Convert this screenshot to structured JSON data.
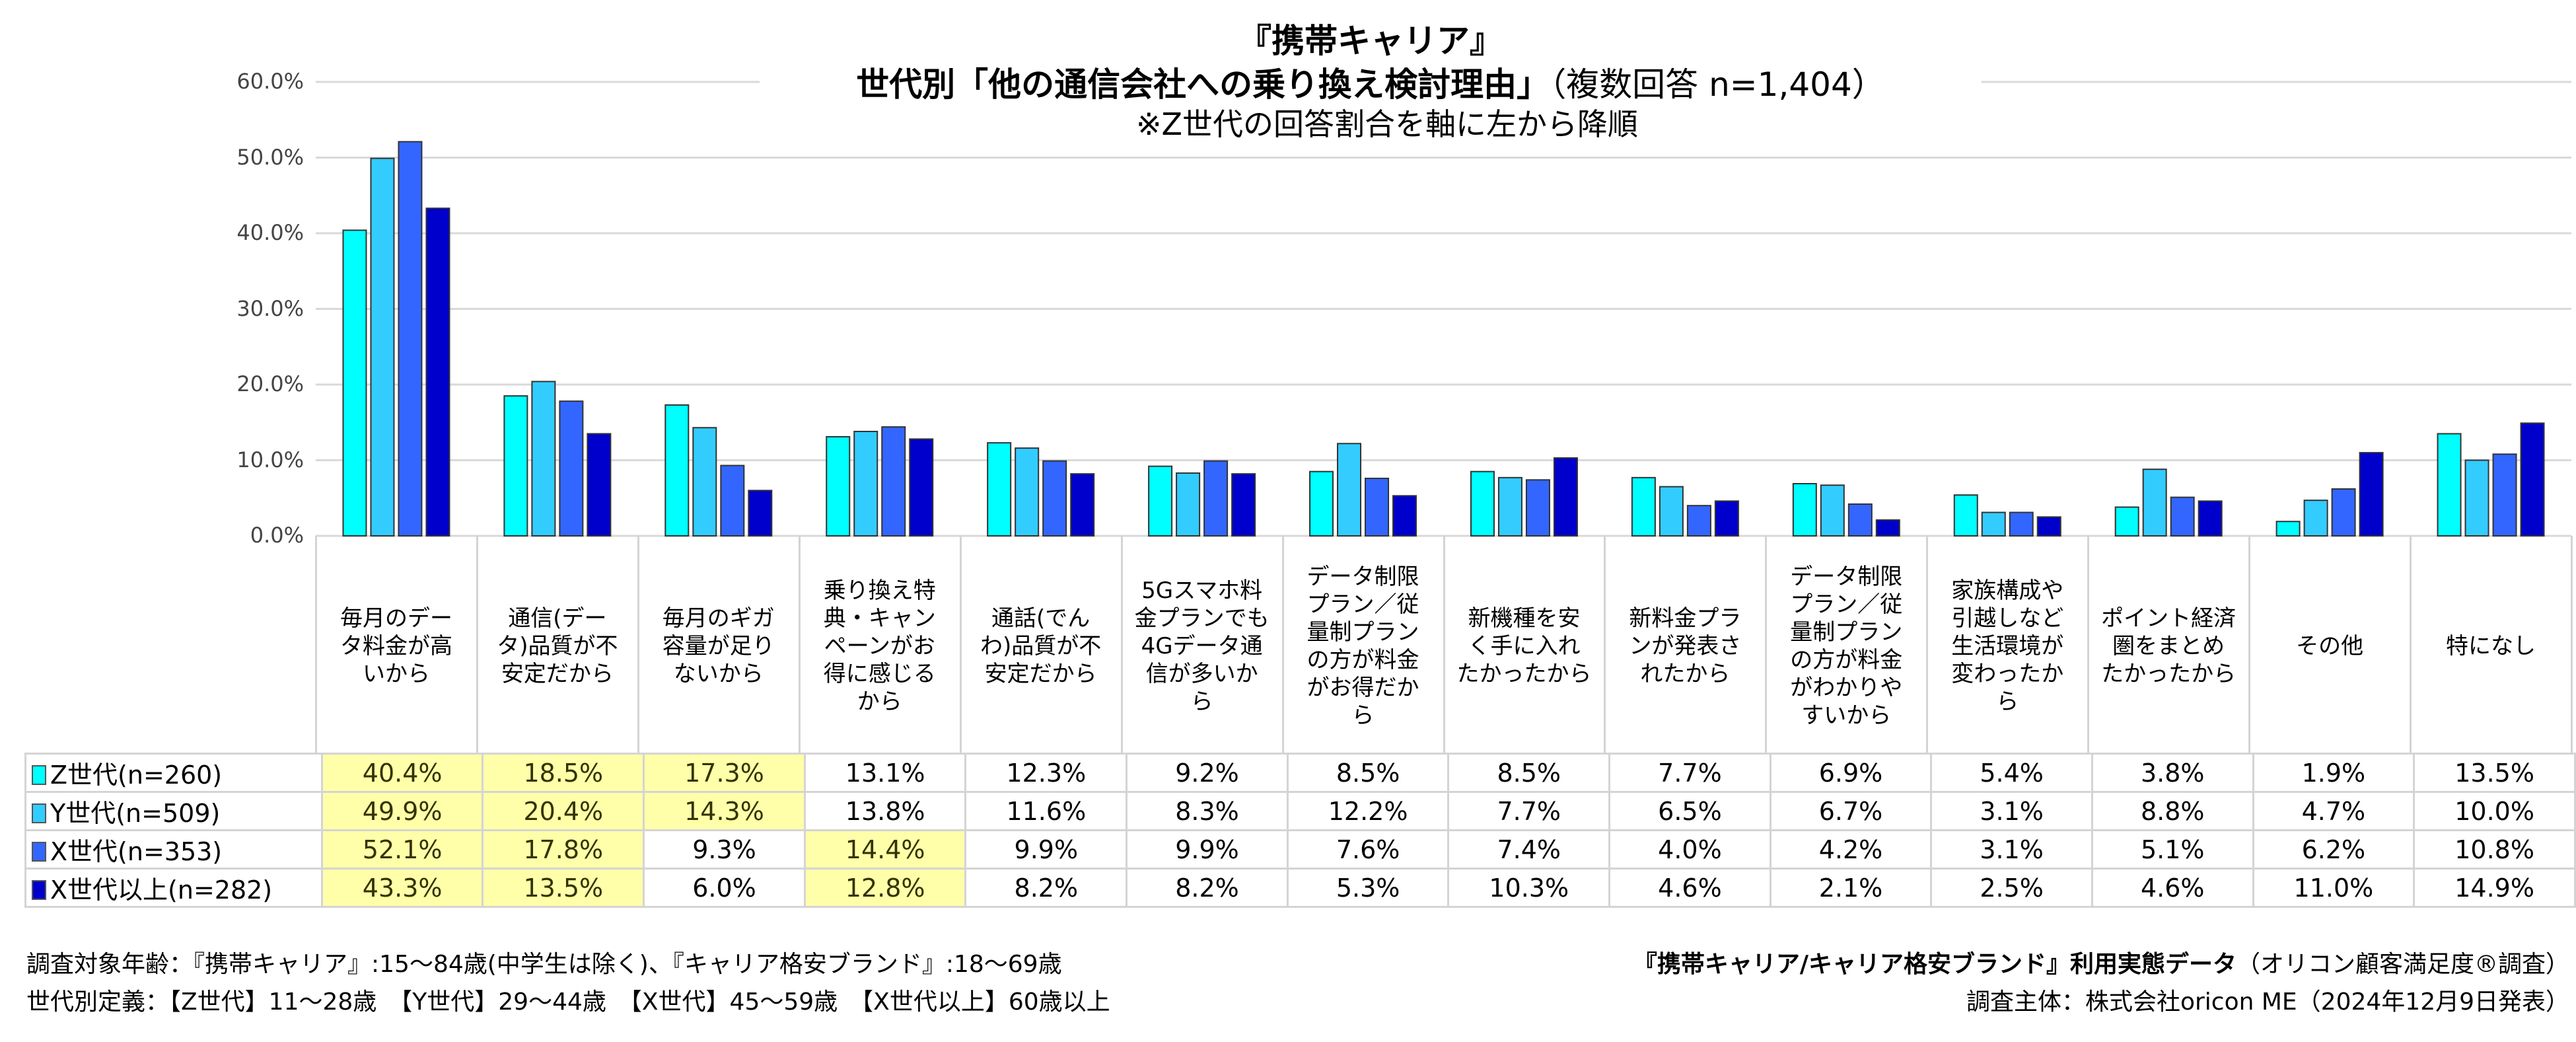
{
  "title": {
    "line1": "『携帯キャリア』",
    "line2": "世代別「他の通信会社への乗り換え検討理由」",
    "line2_sub": "（複数回答 n=1,404）",
    "line3": "※Z世代の回答割合を軸に左から降順"
  },
  "chart_data": {
    "type": "bar",
    "title": "『携帯キャリア』 世代別「他の通信会社への乗り換え検討理由」（複数回答 n=1,404）",
    "subtitle": "※Z世代の回答割合を軸に左から降順",
    "ylim": [
      0,
      60
    ],
    "yticks": [
      "0.0%",
      "10.0%",
      "20.0%",
      "30.0%",
      "40.0%",
      "50.0%",
      "60.0%"
    ],
    "grid": true,
    "legend": "table-bottom",
    "categories": [
      "毎月のデー\nタ料金が高\nいから",
      "通信(デー\nタ)品質が不\n安定だから",
      "毎月のギガ\n容量が足り\nないから",
      "乗り換え特\n典・キャン\nペーンがお\n得に感じる\nから",
      "通話(でん\nわ)品質が不\n安定だから",
      "5Gスマホ料\n金プランでも\n4Gデータ通\n信が多いか\nら",
      "データ制限\nプラン／従\n量制プラン\nの方が料金\nがお得だか\nら",
      "新機種を安\nく手に入れ\nたかったから",
      "新料金プラ\nンが発表さ\nれたから",
      "データ制限\nプラン／従\n量制プラン\nの方が料金\nがわかりや\nすいから",
      "家族構成や\n引越しなど\n生活環境が\n変わったか\nら",
      "ポイント経済\n圏をまとめ\nたかったから",
      "その他",
      "特になし"
    ],
    "series": [
      {
        "name": "Z世代(n=260)",
        "color": "#00ffff",
        "values": [
          40.4,
          18.5,
          17.3,
          13.1,
          12.3,
          9.2,
          8.5,
          8.5,
          7.7,
          6.9,
          5.4,
          3.8,
          1.9,
          13.5
        ],
        "highlight": [
          0,
          1,
          2
        ]
      },
      {
        "name": "Y世代(n=509)",
        "color": "#33ccff",
        "values": [
          49.9,
          20.4,
          14.3,
          13.8,
          11.6,
          8.3,
          12.2,
          7.7,
          6.5,
          6.7,
          3.1,
          8.8,
          4.7,
          10.0
        ],
        "highlight": [
          0,
          1,
          2
        ]
      },
      {
        "name": "X世代(n=353)",
        "color": "#3366ff",
        "values": [
          52.1,
          17.8,
          9.3,
          14.4,
          9.9,
          9.9,
          7.6,
          7.4,
          4.0,
          4.2,
          3.1,
          5.1,
          6.2,
          10.8
        ],
        "highlight": [
          0,
          1,
          3
        ]
      },
      {
        "name": "X世代以上(n=282)",
        "color": "#0000cc",
        "values": [
          43.3,
          13.5,
          6.0,
          12.8,
          8.2,
          8.2,
          5.3,
          10.3,
          4.6,
          2.1,
          2.5,
          4.6,
          11.0,
          14.9
        ],
        "highlight": [
          0,
          1,
          3
        ]
      }
    ],
    "highlight_color": "#ffffaa"
  },
  "footer": {
    "left1": "調査対象年齢：『携帯キャリア』:15～84歳(中学生は除く)、『キャリア格安ブランド』:18～69歳",
    "left2": "世代別定義：【Z世代】11～28歳　【Y世代】29～44歳　【X世代】45～59歳　【X世代以上】60歳以上",
    "right1": "『携帯キャリア/キャリア格安ブランド』利用実態データ",
    "right1_sub": "（オリコン顧客満足度®調査）",
    "right2": "調査主体：株式会社oricon ME（2024年12月9日発表）"
  }
}
